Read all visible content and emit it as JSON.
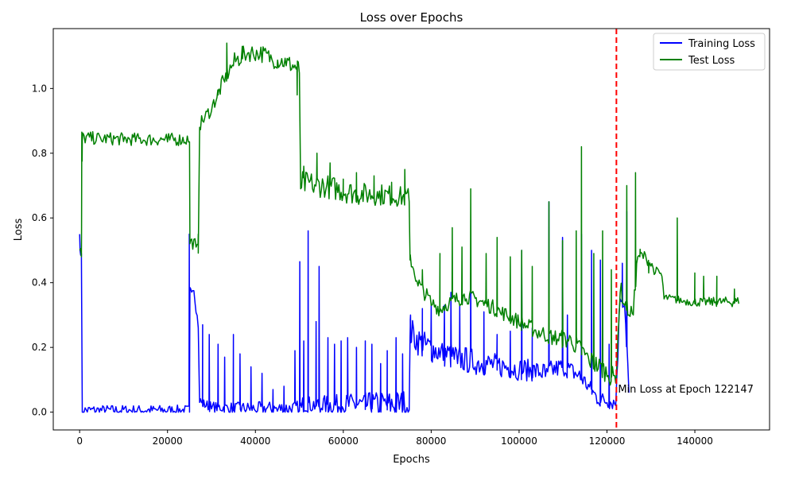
{
  "chart_data": {
    "type": "line",
    "title": "Loss over Epochs",
    "xlabel": "Epochs",
    "ylabel": "Loss",
    "xlim": [
      -6000,
      157000
    ],
    "ylim": [
      -0.055,
      1.185
    ],
    "x_ticks": [
      0,
      20000,
      40000,
      60000,
      80000,
      100000,
      120000,
      140000
    ],
    "y_ticks": [
      0.0,
      0.2,
      0.4,
      0.6,
      0.8,
      1.0
    ],
    "y_tick_labels": [
      "0.0",
      "0.2",
      "0.4",
      "0.6",
      "0.8",
      "1.0"
    ],
    "grid": false,
    "legend_position": "upper right",
    "series": [
      {
        "name": "Training Loss",
        "color": "#0000ff",
        "baseline": [
          [
            0,
            0.55
          ],
          [
            100,
            0.5
          ],
          [
            400,
            0.49
          ],
          [
            600,
            0.0
          ],
          [
            25000,
            0.0
          ],
          [
            25100,
            0.385
          ],
          [
            26000,
            0.375
          ],
          [
            27000,
            0.26
          ],
          [
            27300,
            0.03
          ],
          [
            28000,
            0.02
          ],
          [
            30000,
            0.01
          ],
          [
            35000,
            0.005
          ],
          [
            40000,
            0.004
          ],
          [
            45000,
            0.003
          ],
          [
            50000,
            0.003
          ],
          [
            50500,
            0.015
          ],
          [
            55000,
            0.012
          ],
          [
            60000,
            0.01
          ],
          [
            65000,
            0.008
          ],
          [
            70000,
            0.007
          ],
          [
            75000,
            0.006
          ],
          [
            75200,
            0.23
          ],
          [
            78000,
            0.19
          ],
          [
            82000,
            0.17
          ],
          [
            86000,
            0.15
          ],
          [
            90000,
            0.14
          ],
          [
            95000,
            0.13
          ],
          [
            100000,
            0.12
          ],
          [
            103000,
            0.115
          ],
          [
            106000,
            0.11
          ],
          [
            110000,
            0.13
          ],
          [
            114000,
            0.1
          ],
          [
            118000,
            0.03
          ],
          [
            122000,
            0.02
          ],
          [
            123000,
            0.35
          ],
          [
            124000,
            0.33
          ],
          [
            125000,
            0.06
          ]
        ],
        "noise": [
          [
            27300,
            0.02
          ],
          [
            50000,
            0.03
          ],
          [
            75200,
            0.06
          ],
          [
            122000,
            0.03
          ],
          [
            123000,
            0.05
          ],
          [
            125000,
            0.05
          ]
        ],
        "spikes": [
          [
            24950,
            0.55
          ],
          [
            28000,
            0.27
          ],
          [
            29500,
            0.24
          ],
          [
            31500,
            0.21
          ],
          [
            33000,
            0.17
          ],
          [
            35000,
            0.24
          ],
          [
            36500,
            0.18
          ],
          [
            39000,
            0.14
          ],
          [
            41500,
            0.12
          ],
          [
            44000,
            0.07
          ],
          [
            46500,
            0.08
          ],
          [
            49000,
            0.19
          ],
          [
            50100,
            0.465
          ],
          [
            51000,
            0.22
          ],
          [
            52000,
            0.56
          ],
          [
            53800,
            0.28
          ],
          [
            54500,
            0.45
          ],
          [
            56500,
            0.23
          ],
          [
            58000,
            0.21
          ],
          [
            59500,
            0.22
          ],
          [
            61000,
            0.23
          ],
          [
            63000,
            0.2
          ],
          [
            65000,
            0.22
          ],
          [
            66500,
            0.21
          ],
          [
            68500,
            0.15
          ],
          [
            70000,
            0.19
          ],
          [
            72000,
            0.23
          ],
          [
            73500,
            0.18
          ],
          [
            75300,
            0.3
          ],
          [
            78000,
            0.32
          ],
          [
            80000,
            0.33
          ],
          [
            83000,
            0.33
          ],
          [
            84500,
            0.37
          ],
          [
            86500,
            0.33
          ],
          [
            89000,
            0.43
          ],
          [
            92000,
            0.31
          ],
          [
            95000,
            0.24
          ],
          [
            98000,
            0.25
          ],
          [
            100600,
            0.5
          ],
          [
            103000,
            0.26
          ],
          [
            106800,
            0.65
          ],
          [
            109900,
            0.54
          ],
          [
            111000,
            0.3
          ],
          [
            114200,
            0.55
          ],
          [
            116500,
            0.5
          ],
          [
            118500,
            0.47
          ],
          [
            120500,
            0.21
          ],
          [
            123500,
            0.46
          ],
          [
            124500,
            0.62
          ],
          [
            126500,
            0.31
          ]
        ]
      },
      {
        "name": "Test Loss",
        "color": "#008000",
        "baseline": [
          [
            0,
            0.5
          ],
          [
            400,
            0.48
          ],
          [
            600,
            0.84
          ],
          [
            5000,
            0.838
          ],
          [
            10000,
            0.836
          ],
          [
            15000,
            0.835
          ],
          [
            20000,
            0.835
          ],
          [
            25000,
            0.835
          ],
          [
            25100,
            0.52
          ],
          [
            26500,
            0.51
          ],
          [
            27000,
            0.49
          ],
          [
            27300,
            0.88
          ],
          [
            30000,
            0.93
          ],
          [
            33000,
            1.02
          ],
          [
            35000,
            1.07
          ],
          [
            38000,
            1.1
          ],
          [
            41000,
            1.1
          ],
          [
            44000,
            1.08
          ],
          [
            47000,
            1.07
          ],
          [
            50000,
            1.05
          ],
          [
            50300,
            0.69
          ],
          [
            53000,
            0.69
          ],
          [
            56000,
            0.685
          ],
          [
            60000,
            0.67
          ],
          [
            64000,
            0.66
          ],
          [
            68000,
            0.66
          ],
          [
            72000,
            0.655
          ],
          [
            75000,
            0.65
          ],
          [
            75200,
            0.47
          ],
          [
            77000,
            0.39
          ],
          [
            80000,
            0.33
          ],
          [
            82000,
            0.31
          ],
          [
            84000,
            0.33
          ],
          [
            88000,
            0.35
          ],
          [
            92000,
            0.33
          ],
          [
            96000,
            0.3
          ],
          [
            100000,
            0.27
          ],
          [
            104000,
            0.24
          ],
          [
            108000,
            0.22
          ],
          [
            112000,
            0.21
          ],
          [
            116000,
            0.15
          ],
          [
            120000,
            0.11
          ],
          [
            122000,
            0.09
          ],
          [
            123000,
            0.37
          ],
          [
            124000,
            0.33
          ],
          [
            125000,
            0.3
          ],
          [
            126000,
            0.3
          ],
          [
            127000,
            0.48
          ],
          [
            129000,
            0.47
          ],
          [
            131000,
            0.43
          ],
          [
            132500,
            0.42
          ],
          [
            133000,
            0.35
          ],
          [
            137000,
            0.34
          ],
          [
            140000,
            0.335
          ],
          [
            145000,
            0.335
          ],
          [
            150000,
            0.335
          ]
        ],
        "noise": [
          [
            27300,
            0.025
          ],
          [
            35000,
            0.035
          ],
          [
            50000,
            0.035
          ],
          [
            50300,
            0.05
          ],
          [
            75000,
            0.04
          ],
          [
            75200,
            0.03
          ],
          [
            100000,
            0.03
          ],
          [
            116000,
            0.04
          ],
          [
            122000,
            0.04
          ],
          [
            133000,
            0.015
          ],
          [
            150000,
            0.02
          ]
        ],
        "spikes": [
          [
            500,
            0.865
          ],
          [
            27000,
            0.55
          ],
          [
            31500,
            0.98
          ],
          [
            33500,
            1.14
          ],
          [
            37000,
            1.13
          ],
          [
            45000,
            1.08
          ],
          [
            49500,
            0.98
          ],
          [
            51000,
            0.76
          ],
          [
            54000,
            0.8
          ],
          [
            57000,
            0.77
          ],
          [
            60000,
            0.72
          ],
          [
            63000,
            0.74
          ],
          [
            67000,
            0.73
          ],
          [
            71000,
            0.71
          ],
          [
            74000,
            0.75
          ],
          [
            78000,
            0.44
          ],
          [
            82000,
            0.49
          ],
          [
            84800,
            0.57
          ],
          [
            87000,
            0.51
          ],
          [
            89000,
            0.69
          ],
          [
            92500,
            0.49
          ],
          [
            95000,
            0.54
          ],
          [
            98000,
            0.48
          ],
          [
            100600,
            0.5
          ],
          [
            103000,
            0.45
          ],
          [
            106800,
            0.65
          ],
          [
            109900,
            0.53
          ],
          [
            113000,
            0.56
          ],
          [
            114200,
            0.82
          ],
          [
            117000,
            0.49
          ],
          [
            119000,
            0.56
          ],
          [
            121000,
            0.44
          ],
          [
            124500,
            0.7
          ],
          [
            126500,
            0.74
          ],
          [
            127600,
            0.49
          ],
          [
            129500,
            0.43
          ],
          [
            136000,
            0.6
          ],
          [
            140000,
            0.43
          ],
          [
            142000,
            0.42
          ],
          [
            145000,
            0.42
          ],
          [
            149000,
            0.38
          ]
        ]
      }
    ],
    "reference_line": {
      "x": 122147,
      "color": "#ff0000",
      "style": "dashed"
    },
    "annotation": {
      "text": "Min Loss at Epoch 122147",
      "x": 122147,
      "y": 0.07
    }
  }
}
